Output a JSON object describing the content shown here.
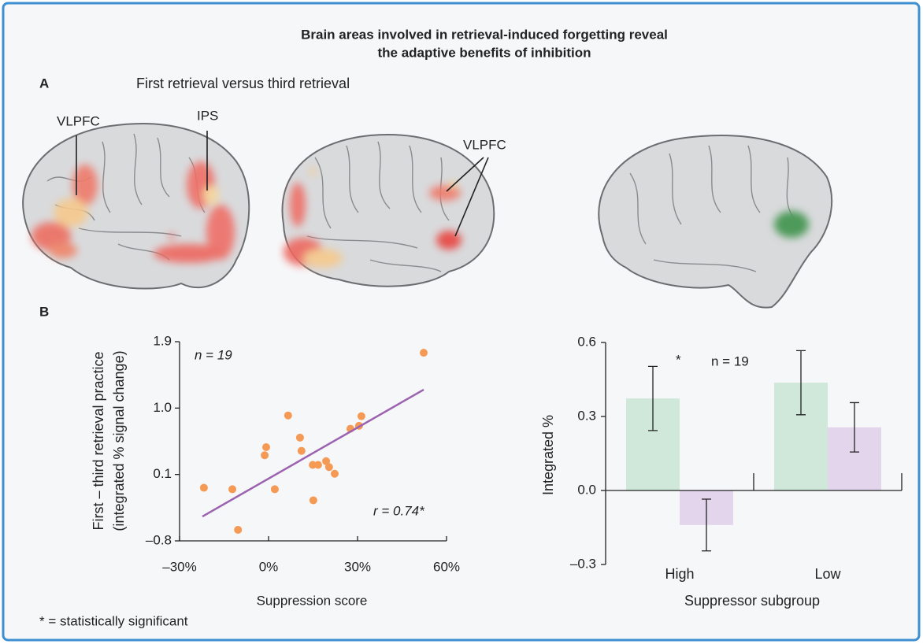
{
  "title_lines": [
    "Brain areas involved in retrieval-induced forgetting reveal",
    "the adaptive benefits of inhibition"
  ],
  "panel_a": {
    "label": "A",
    "subtitle": "First retrieval versus third retrieval",
    "regions": [
      "VLPFC",
      "IPS",
      "VLPFC"
    ]
  },
  "panel_b": {
    "label": "B"
  },
  "footnote": "* = statistically significant",
  "chart_data": [
    {
      "type": "scatter",
      "x_label": "Suppression score",
      "y_label_lines": [
        "First – third retrieval practice",
        "(integrated % signal change)"
      ],
      "annotations": [
        "n = 19",
        "r = 0.74*"
      ],
      "x": [
        -21.8,
        -12.2,
        -10.3,
        -1.3,
        -0.8,
        2.1,
        6.6,
        10.6,
        11.1,
        14.9,
        15.1,
        16.7,
        19.4,
        20.4,
        22.3,
        27.6,
        30.5,
        31.3,
        52.3
      ],
      "values": [
        -0.08,
        -0.1,
        -0.65,
        0.36,
        0.47,
        -0.1,
        0.9,
        0.6,
        0.42,
        0.23,
        -0.25,
        0.23,
        0.28,
        0.2,
        0.11,
        0.72,
        0.76,
        0.89,
        1.75
      ],
      "color": "#f59a55",
      "trend_line": {
        "x": [
          -22.3,
          52.3
        ],
        "values": [
          -0.47,
          1.25
        ],
        "color": "#9b62b0"
      },
      "xlim": [
        -30,
        60
      ],
      "xticks": [
        {
          "value": -30,
          "label": "–30%"
        },
        {
          "value": 0,
          "label": "0%"
        },
        {
          "value": 30,
          "label": "30%"
        },
        {
          "value": 60,
          "label": "60%"
        }
      ],
      "ylim": [
        -0.8,
        1.9
      ],
      "yticks": [
        {
          "value": -0.8,
          "label": "–0.8"
        },
        0.1,
        {
          "value": 1.0,
          "label": "1.0"
        },
        1.9
      ]
    },
    {
      "type": "bar",
      "x_label": "Suppressor subgroup",
      "y_label": "Integrated %",
      "annotations": [
        "*",
        "n = 19"
      ],
      "categories": [
        "High",
        "Low"
      ],
      "series": [
        {
          "color": "#cfe8d9",
          "values": [
            0.373,
            0.437
          ],
          "errors": [
            0.13,
            0.13
          ]
        },
        {
          "color": "#e3d5eb",
          "values": [
            -0.14,
            0.256
          ],
          "errors": [
            0.105,
            0.1
          ]
        }
      ],
      "ylim": [
        -0.3,
        0.6
      ],
      "yticks": [
        {
          "value": -0.3,
          "label": "–0.3"
        },
        {
          "value": 0.0,
          "label": "0.0"
        },
        0.3,
        0.6
      ]
    }
  ]
}
